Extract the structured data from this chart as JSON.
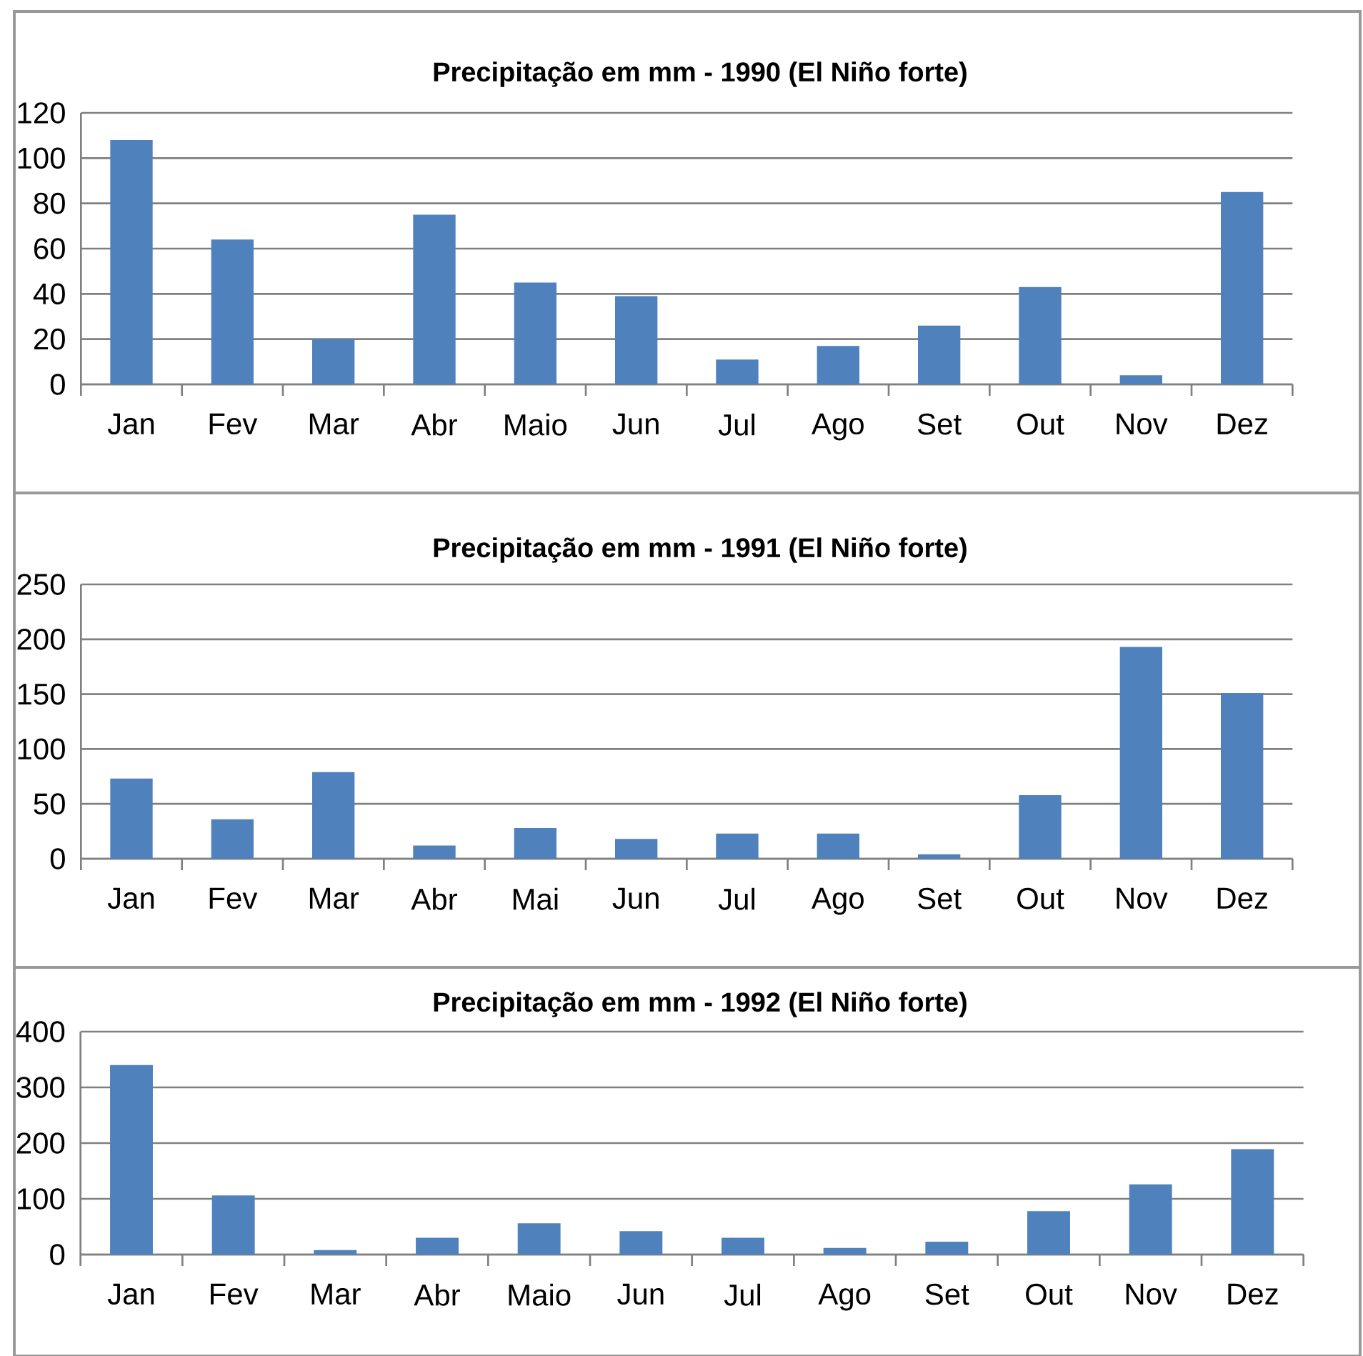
{
  "chart_data": [
    {
      "type": "bar",
      "title": "Precipitação em mm - 1990 (El Niño forte)",
      "categories": [
        "Jan",
        "Fev",
        "Mar",
        "Abr",
        "Maio",
        "Jun",
        "Jul",
        "Ago",
        "Set",
        "Out",
        "Nov",
        "Dez"
      ],
      "values": [
        108,
        64,
        20,
        75,
        45,
        39,
        11,
        17,
        26,
        43,
        4,
        85
      ],
      "color": "#4f81bd",
      "ylim": [
        0,
        120
      ],
      "yticks": [
        0,
        20,
        40,
        60,
        80,
        100,
        120
      ],
      "grid": "y"
    },
    {
      "type": "bar",
      "title": "Precipitação em mm - 1991 (El Niño forte)",
      "categories": [
        "Jan",
        "Fev",
        "Mar",
        "Abr",
        "Mai",
        "Jun",
        "Jul",
        "Ago",
        "Set",
        "Out",
        "Nov",
        "Dez"
      ],
      "values": [
        73,
        36,
        79,
        12,
        28,
        18,
        23,
        23,
        4,
        58,
        193,
        151
      ],
      "color": "#4f81bd",
      "ylim": [
        0,
        250
      ],
      "yticks": [
        0,
        50,
        100,
        150,
        200,
        250
      ],
      "grid": "y"
    },
    {
      "type": "bar",
      "title": "Precipitação em mm - 1992 (El Niño forte)",
      "categories": [
        "Jan",
        "Fev",
        "Mar",
        "Abr",
        "Maio",
        "Jun",
        "Jul",
        "Ago",
        "Set",
        "Out",
        "Nov",
        "Dez"
      ],
      "values": [
        340,
        106,
        8,
        30,
        56,
        42,
        30,
        12,
        23,
        78,
        126,
        189
      ],
      "color": "#4f81bd",
      "ylim": [
        0,
        400
      ],
      "yticks": [
        0,
        100,
        200,
        300,
        400
      ],
      "grid": "y"
    }
  ]
}
